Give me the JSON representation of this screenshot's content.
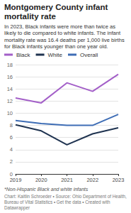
{
  "chart_data": {
    "type": "line",
    "title": "Montgomery County infant mortality rate",
    "subtitle": "In 2023, Black infants were more than twice as likely to die compared to white infants. The infant mortality rate was 16.4 deaths per 1,000 live births for Black infants younger than one year old.",
    "note": "*Non-Hispanic Black and white infants",
    "credit": "Chart: Kaitlin Schroeder • Source: Ohio Department of Health, Bureau of Vital Statistics • Get the data • Created with Datawrapper",
    "categories": [
      "2019",
      "2020",
      "2021",
      "2022",
      "2023"
    ],
    "series": [
      {
        "name": "Black",
        "color": "#a35fc8",
        "values": [
          12.5,
          11.7,
          15.0,
          13.6,
          16.4
        ]
      },
      {
        "name": "White",
        "color": "#1f3350",
        "values": [
          8.1,
          7.1,
          4.8,
          6.6,
          7.6
        ]
      },
      {
        "name": "Overall",
        "color": "#3e6db5",
        "values": [
          8.8,
          8.3,
          8.0,
          8.0,
          9.8
        ]
      }
    ],
    "ylim": [
      0,
      18
    ],
    "yticks": [
      0,
      2,
      4,
      6,
      8,
      10,
      12,
      14,
      16,
      18
    ],
    "grid": true,
    "legend": "top",
    "marker": "none"
  }
}
